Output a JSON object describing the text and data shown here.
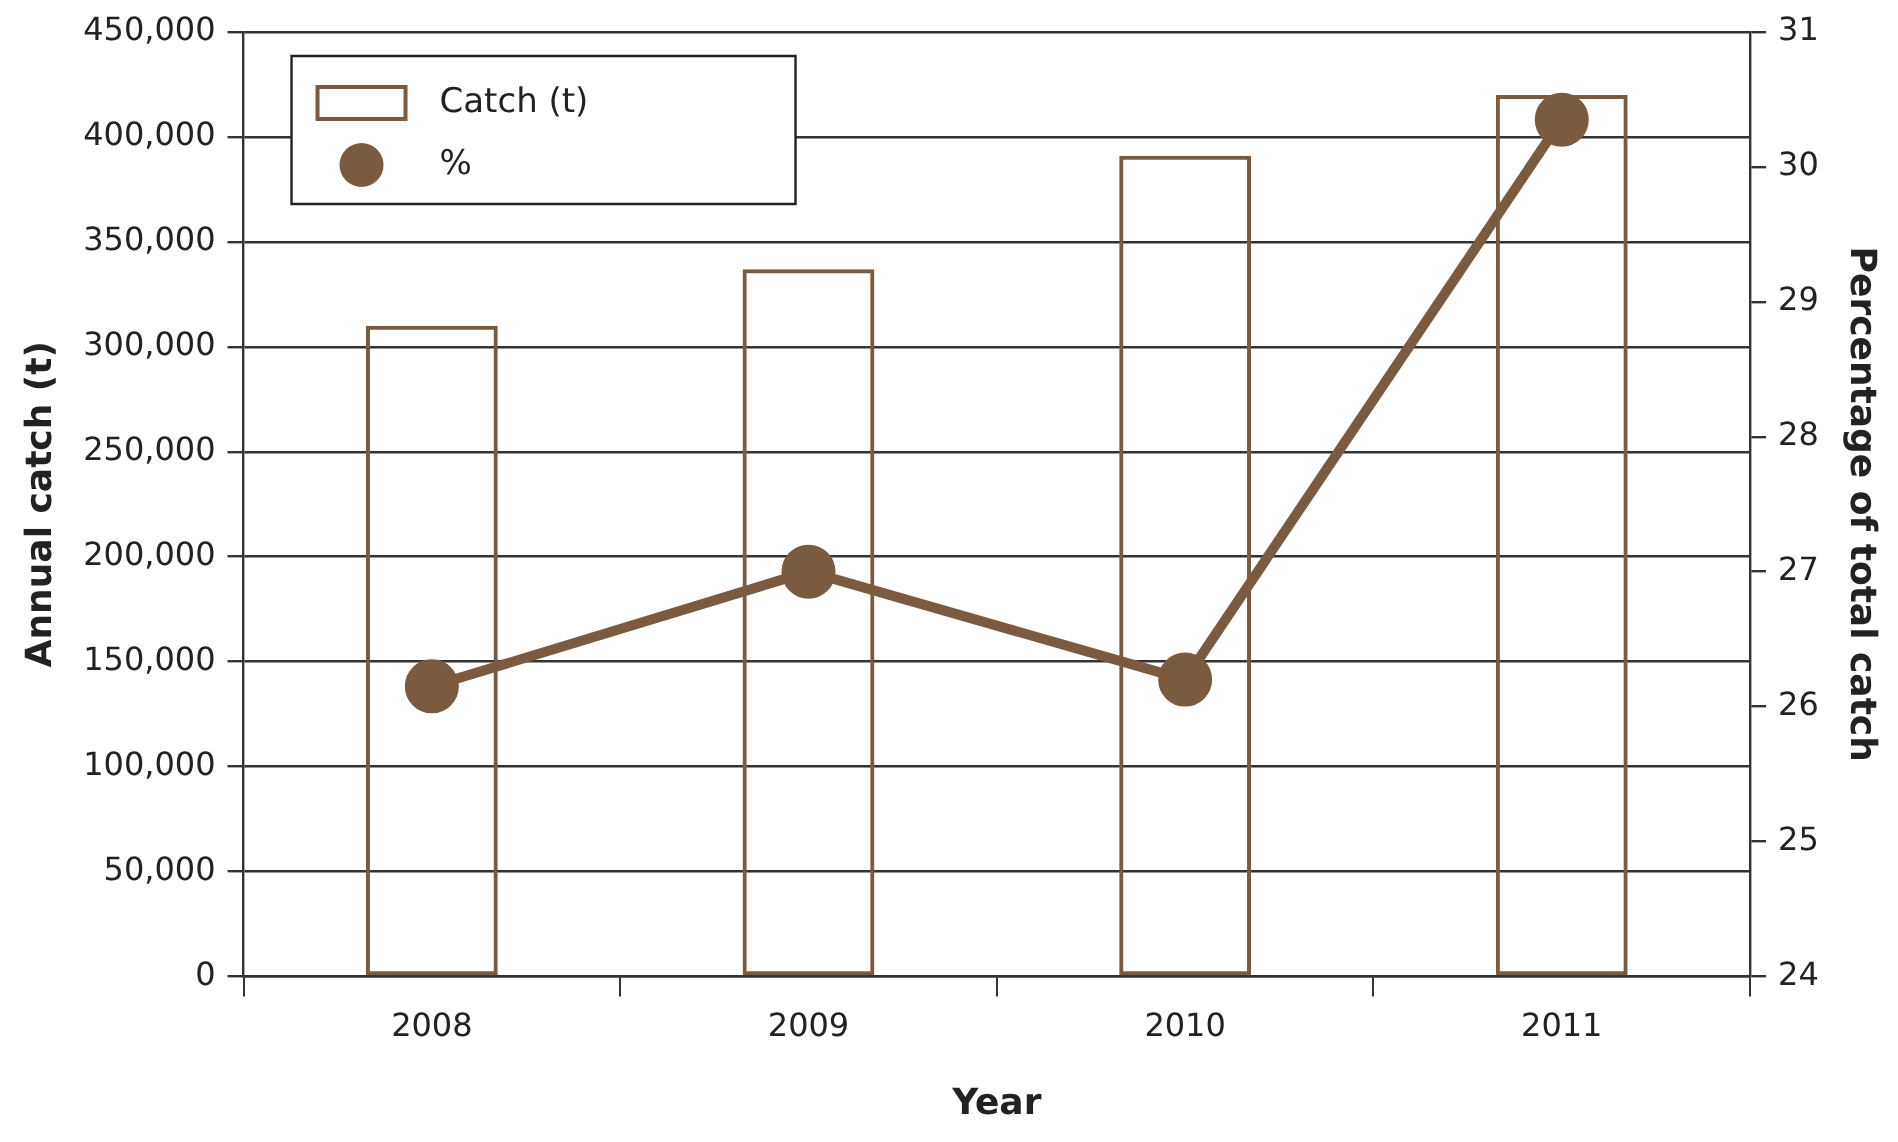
{
  "chart_data": {
    "type": "bar",
    "categories": [
      "2008",
      "2009",
      "2010",
      "2011"
    ],
    "xlabel": "Year",
    "ylabel": "Annual catch (t)",
    "y2label": "Percentage of total catch",
    "series": [
      {
        "name": "Catch (t)",
        "color": "#7b5b40",
        "values": [
          310000,
          337000,
          391000,
          420000
        ]
      },
      {
        "name": "%",
        "type": "line",
        "axis": "y2",
        "color": "#7b5b40",
        "values": [
          26.15,
          27.0,
          26.2,
          30.35
        ]
      }
    ],
    "ylim": [
      0,
      450000
    ],
    "yticks": [
      0,
      {
        "value": 50000,
        "label": "50,000"
      },
      {
        "value": 100000,
        "label": "100,000"
      },
      {
        "value": 150000,
        "label": "150,000"
      },
      {
        "value": 200000,
        "label": "200,000"
      },
      {
        "value": 250000,
        "label": "250,000"
      },
      {
        "value": 300000,
        "label": "300,000"
      },
      {
        "value": 350000,
        "label": "350,000"
      },
      {
        "value": 400000,
        "label": "400,000"
      },
      {
        "value": 450000,
        "label": "450,000"
      }
    ],
    "y2lim": [
      24,
      31
    ],
    "y2ticks": [
      24,
      25,
      26,
      27,
      28,
      29,
      30,
      31
    ],
    "grid": "y",
    "legend": "top left",
    "marker": "circle",
    "line_style": "solid"
  }
}
